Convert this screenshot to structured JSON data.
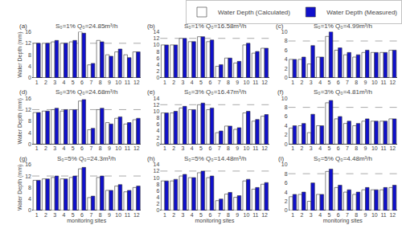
{
  "chart_data": [
    {
      "type": "bar",
      "title": "S₀=1% Q₀=24.85m³/h",
      "annotations": [
        "(a)"
      ],
      "ylabel": "Water Depth (mm)",
      "categories": [
        "1",
        "2",
        "3",
        "4",
        "5",
        "6",
        "7",
        "8",
        "9",
        "10",
        "11",
        "12"
      ],
      "series": [
        {
          "name": "Water Depth (Calculated)",
          "color": "#ffffff",
          "values": [
            12.0,
            12.0,
            12.5,
            12.0,
            12.5,
            16.0,
            4.5,
            13.0,
            8.0,
            9.0,
            8.0,
            9.0
          ]
        },
        {
          "name": "Water Depth (Measured)",
          "color": "#1010cc",
          "values": [
            12.0,
            12.0,
            13.0,
            12.0,
            13.0,
            15.5,
            5.0,
            12.5,
            7.5,
            10.0,
            7.0,
            9.0
          ]
        }
      ],
      "ylim": [
        0,
        16
      ],
      "yticks": [
        0,
        4,
        8,
        12,
        16
      ],
      "reference_line": {
        "y": 12,
        "color": "#aaaaaa",
        "line_style": "dashed"
      },
      "grid": false,
      "legend": "upper right"
    },
    {
      "type": "bar",
      "title": "S₀=1% Q₀=16.58m³/h",
      "annotations": [
        "(b)"
      ],
      "categories": [
        "1",
        "2",
        "3",
        "4",
        "5",
        "6",
        "7",
        "8",
        "9",
        "10",
        "11",
        "12"
      ],
      "series": [
        {
          "name": "Water Depth (Calculated)",
          "color": "#ffffff",
          "values": [
            10.0,
            10.0,
            12.0,
            11.0,
            12.5,
            11.0,
            3.5,
            6.0,
            4.5,
            10.0,
            7.5,
            9.0
          ]
        },
        {
          "name": "Water Depth (Measured)",
          "color": "#1010cc",
          "values": [
            10.0,
            10.0,
            12.0,
            11.0,
            12.5,
            11.5,
            4.0,
            6.0,
            5.0,
            10.5,
            8.0,
            9.0
          ]
        }
      ],
      "ylim": [
        0,
        14
      ],
      "yticks": [
        0,
        2,
        4,
        6,
        8,
        10,
        12,
        14
      ],
      "reference_line": {
        "y": 12,
        "color": "#aaaaaa",
        "line_style": "dashed"
      },
      "grid": false
    },
    {
      "type": "bar",
      "title": "S₀=1% Q₀=4.99m³/h",
      "annotations": [
        "(c)"
      ],
      "categories": [
        "1",
        "2",
        "3",
        "4",
        "5",
        "6",
        "7",
        "8",
        "9",
        "10",
        "11",
        "12"
      ],
      "series": [
        {
          "name": "Water Depth (Calculated)",
          "color": "#ffffff",
          "values": [
            4.0,
            4.0,
            3.0,
            4.5,
            9.0,
            6.0,
            5.0,
            4.5,
            5.5,
            5.5,
            5.5,
            6.0
          ]
        },
        {
          "name": "Water Depth (Measured)",
          "color": "#1010cc",
          "values": [
            4.0,
            4.5,
            7.0,
            4.5,
            10.0,
            6.5,
            5.5,
            5.0,
            6.0,
            5.5,
            5.5,
            6.0
          ]
        }
      ],
      "ylim": [
        0,
        10
      ],
      "yticks": [
        0,
        2,
        4,
        6,
        8,
        10
      ],
      "reference_line": {
        "y": 8,
        "color": "#aaaaaa",
        "line_style": "dashed"
      },
      "grid": false
    },
    {
      "type": "bar",
      "title": "S₀=3% Q₀=24.68m³/h",
      "annotations": [
        "(d)"
      ],
      "ylabel": "Water Depth (mm)",
      "categories": [
        "1",
        "2",
        "3",
        "4",
        "5",
        "6",
        "7",
        "8",
        "9",
        "10",
        "11",
        "12"
      ],
      "series": [
        {
          "name": "Water Depth (Calculated)",
          "color": "#ffffff",
          "values": [
            11.0,
            11.5,
            12.0,
            11.5,
            12.0,
            15.0,
            5.0,
            12.0,
            7.5,
            9.0,
            7.0,
            8.5
          ]
        },
        {
          "name": "Water Depth (Measured)",
          "color": "#1010cc",
          "values": [
            11.0,
            11.5,
            12.5,
            12.0,
            12.0,
            15.5,
            5.5,
            12.5,
            7.0,
            9.5,
            7.5,
            9.0
          ]
        }
      ],
      "ylim": [
        0,
        16
      ],
      "yticks": [
        0,
        4,
        8,
        12,
        16
      ],
      "reference_line": {
        "y": 12,
        "color": "#aaaaaa",
        "line_style": "dashed"
      },
      "grid": false
    },
    {
      "type": "bar",
      "title": "S₀=3% Q₀=16.47m³/h",
      "annotations": [
        "(e)"
      ],
      "categories": [
        "1",
        "2",
        "3",
        "4",
        "5",
        "6",
        "7",
        "8",
        "9",
        "10",
        "11",
        "12"
      ],
      "series": [
        {
          "name": "Water Depth (Calculated)",
          "color": "#ffffff",
          "values": [
            9.5,
            9.5,
            11.0,
            10.5,
            12.0,
            10.5,
            3.5,
            5.5,
            4.5,
            9.5,
            7.0,
            8.5
          ]
        },
        {
          "name": "Water Depth (Measured)",
          "color": "#1010cc",
          "values": [
            9.5,
            10.0,
            11.5,
            10.5,
            12.5,
            11.0,
            4.0,
            5.5,
            5.0,
            10.0,
            7.5,
            9.0
          ]
        }
      ],
      "ylim": [
        0,
        14
      ],
      "yticks": [
        0,
        2,
        4,
        6,
        8,
        10,
        12,
        14
      ],
      "reference_line": {
        "y": 12,
        "color": "#aaaaaa",
        "line_style": "dashed"
      },
      "grid": false
    },
    {
      "type": "bar",
      "title": "S₀=3% Q₀=4.81m³/h",
      "annotations": [
        "(f)"
      ],
      "categories": [
        "1",
        "2",
        "3",
        "4",
        "5",
        "6",
        "7",
        "8",
        "9",
        "10",
        "11",
        "12"
      ],
      "series": [
        {
          "name": "Water Depth (Calculated)",
          "color": "#ffffff",
          "values": [
            3.5,
            4.0,
            2.5,
            4.0,
            9.0,
            5.5,
            4.5,
            4.0,
            5.0,
            5.0,
            5.0,
            5.5
          ]
        },
        {
          "name": "Water Depth (Measured)",
          "color": "#1010cc",
          "values": [
            4.0,
            4.5,
            6.5,
            4.0,
            9.5,
            6.0,
            5.0,
            4.5,
            5.5,
            5.0,
            5.0,
            5.5
          ]
        }
      ],
      "ylim": [
        0,
        10
      ],
      "yticks": [
        0,
        2,
        4,
        6,
        8,
        10
      ],
      "reference_line": {
        "y": 8,
        "color": "#aaaaaa",
        "line_style": "dashed"
      },
      "grid": false
    },
    {
      "type": "bar",
      "title": "S₀=5% Q₀=24.3m³/h",
      "annotations": [
        "(g)"
      ],
      "ylabel": "Water Depth (mm)",
      "xlabel": "monitoring sites",
      "categories": [
        "1",
        "2",
        "3",
        "4",
        "5",
        "6",
        "7",
        "8",
        "9",
        "10",
        "11",
        "12"
      ],
      "series": [
        {
          "name": "Water Depth (Calculated)",
          "color": "#ffffff",
          "values": [
            10.5,
            11.0,
            11.5,
            11.0,
            11.5,
            14.5,
            4.5,
            11.5,
            7.0,
            8.5,
            6.5,
            8.0
          ]
        },
        {
          "name": "Water Depth (Measured)",
          "color": "#1010cc",
          "values": [
            10.5,
            11.0,
            12.0,
            11.0,
            12.0,
            15.0,
            5.0,
            12.0,
            7.0,
            9.0,
            7.0,
            8.5
          ]
        }
      ],
      "ylim": [
        0,
        16
      ],
      "yticks": [
        0,
        4,
        8,
        12,
        16
      ],
      "reference_line": {
        "y": 12,
        "color": "#aaaaaa",
        "line_style": "dashed"
      },
      "grid": false
    },
    {
      "type": "bar",
      "title": "S₀=5% Q₀=14.48m³/h",
      "annotations": [
        "(h)"
      ],
      "xlabel": "monitoring sites",
      "categories": [
        "1",
        "2",
        "3",
        "4",
        "5",
        "6",
        "7",
        "8",
        "9",
        "10",
        "11",
        "12"
      ],
      "series": [
        {
          "name": "Water Depth (Calculated)",
          "color": "#ffffff",
          "values": [
            9.0,
            9.0,
            10.5,
            10.0,
            11.5,
            10.0,
            3.0,
            5.0,
            4.0,
            9.0,
            6.5,
            8.0
          ]
        },
        {
          "name": "Water Depth (Measured)",
          "color": "#1010cc",
          "values": [
            9.0,
            9.5,
            11.0,
            10.0,
            12.0,
            10.5,
            3.5,
            5.5,
            4.5,
            9.5,
            7.0,
            8.5
          ]
        }
      ],
      "ylim": [
        0,
        14
      ],
      "yticks": [
        0,
        2,
        4,
        6,
        8,
        10,
        12,
        14
      ],
      "reference_line": {
        "y": 12,
        "color": "#aaaaaa",
        "line_style": "dashed"
      },
      "grid": false
    },
    {
      "type": "bar",
      "title": "S₀=5% Q₀=4.48m³/h",
      "annotations": [
        "(i)"
      ],
      "xlabel": "monitoring sites",
      "categories": [
        "1",
        "2",
        "3",
        "4",
        "5",
        "6",
        "7",
        "8",
        "9",
        "10",
        "11",
        "12"
      ],
      "series": [
        {
          "name": "Water Depth (Calculated)",
          "color": "#ffffff",
          "values": [
            3.0,
            3.5,
            2.0,
            3.5,
            8.5,
            5.0,
            4.0,
            3.5,
            4.5,
            4.5,
            4.5,
            5.0
          ]
        },
        {
          "name": "Water Depth (Measured)",
          "color": "#1010cc",
          "values": [
            3.5,
            4.0,
            6.0,
            3.5,
            9.0,
            5.5,
            4.5,
            4.0,
            5.0,
            4.5,
            5.0,
            5.5
          ]
        }
      ],
      "ylim": [
        0,
        10
      ],
      "yticks": [
        0,
        2,
        4,
        6,
        8,
        10
      ],
      "reference_line": {
        "y": 8,
        "color": "#aaaaaa",
        "line_style": "dashed"
      },
      "grid": false
    }
  ]
}
